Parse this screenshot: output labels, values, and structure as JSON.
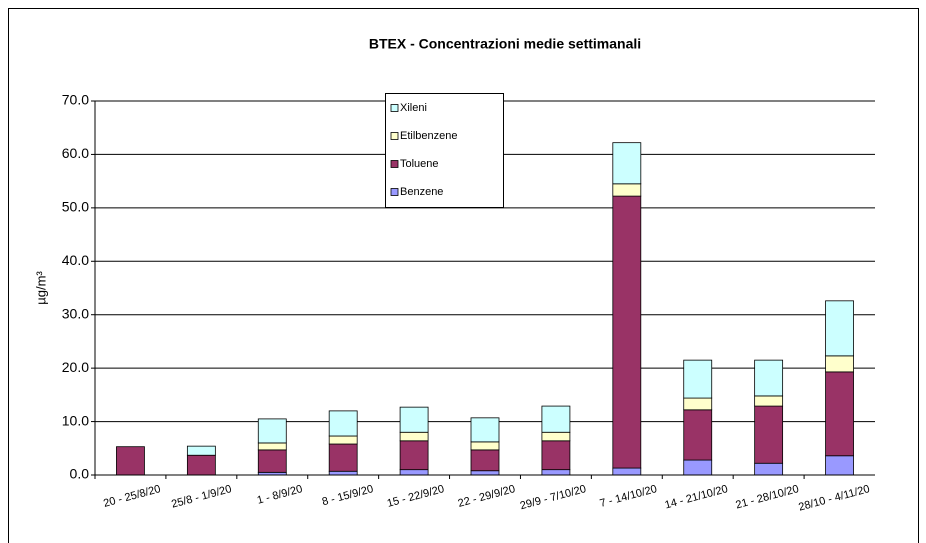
{
  "chart_data": {
    "type": "stacked-bar",
    "title": "BTEX - Concentrazioni medie settimanali",
    "y_label": "µg/m³",
    "categories": [
      "20 - 25/8/20",
      "25/8 - 1/9/20",
      "1 - 8/9/20",
      "8 - 15/9/20",
      "15 - 22/9/20",
      "22 - 29/9/20",
      "29/9 - 7/10/20",
      "7 - 14/10/20",
      "14 - 21/10/20",
      "21 - 28/10/20",
      "28/10 - 4/11/20"
    ],
    "series": [
      {
        "name": "Benzene",
        "color": "#9999ff",
        "values": [
          0,
          0,
          0.5,
          0.7,
          1.0,
          0.8,
          1.0,
          1.3,
          2.8,
          2.2,
          3.6
        ]
      },
      {
        "name": "Toluene",
        "color": "#993366",
        "values": [
          5.3,
          3.7,
          4.2,
          5.1,
          5.4,
          3.9,
          5.4,
          50.9,
          9.4,
          10.7,
          15.7
        ]
      },
      {
        "name": "Etilbenzene",
        "color": "#ffffcc",
        "values": [
          0,
          0,
          1.3,
          1.5,
          1.6,
          1.5,
          1.6,
          2.3,
          2.2,
          1.9,
          3.0
        ]
      },
      {
        "name": "Xileni",
        "color": "#ccffff",
        "values": [
          0,
          1.7,
          4.5,
          4.7,
          4.7,
          4.5,
          4.9,
          7.7,
          7.1,
          6.7,
          10.3
        ]
      }
    ],
    "ylim": [
      0,
      70
    ],
    "yticks": [
      {
        "value": 0,
        "label": "0.0"
      },
      {
        "value": 10,
        "label": "10.0"
      },
      {
        "value": 20,
        "label": "20.0"
      },
      {
        "value": 30,
        "label": "30.0"
      },
      {
        "value": 40,
        "label": "40.0"
      },
      {
        "value": 50,
        "label": "50.0"
      },
      {
        "value": 60,
        "label": "60.0"
      },
      {
        "value": 70,
        "label": "70.0"
      }
    ],
    "grid": true
  }
}
